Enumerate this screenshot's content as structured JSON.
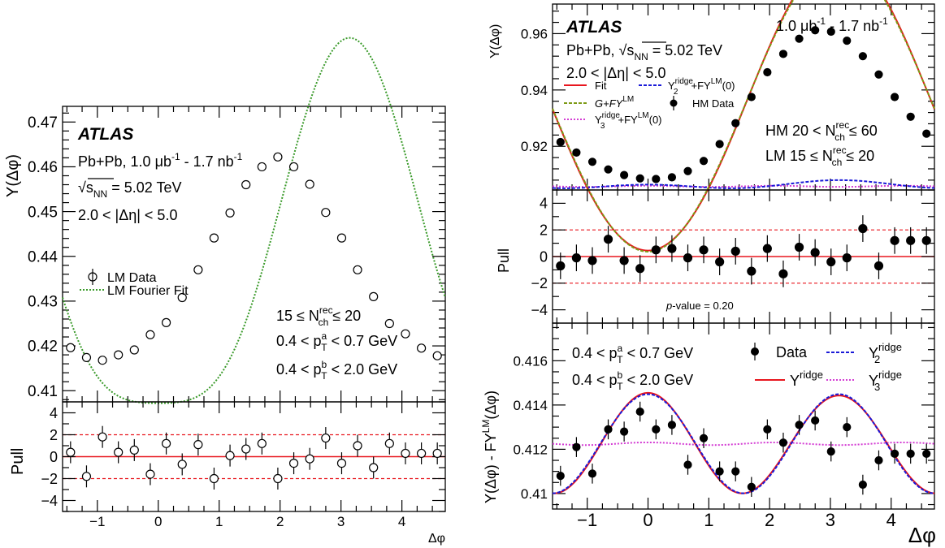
{
  "chart_data": [
    {
      "type": "scatter",
      "panel": "left-main",
      "ylabel": "Y(Δφ)",
      "ylim": [
        0.4075,
        0.4735
      ],
      "xlim": [
        -1.571,
        4.712
      ],
      "yticks": [
        "0.41",
        "0.42",
        "0.43",
        "0.44",
        "0.45",
        "0.46",
        "0.47"
      ],
      "atlas_label": "ATLAS",
      "annotations": [
        "Pb+Pb, 1.0 μb",
        "-1",
        " - 1.7 nb",
        "-1",
        "√s",
        "NN",
        " = 5.02 TeV",
        "2.0 < |Δη| < 5.0"
      ],
      "selection": [
        "15 ≤ N",
        "rec",
        "ch",
        " ≤ 20",
        "0.4 < p",
        "a",
        "T",
        " < 0.7 GeV",
        "0.4 < p",
        "b",
        "T",
        " < 2.0 GeV"
      ],
      "legend": [
        "LM Data",
        "LM Fourier Fit"
      ],
      "series": [
        {
          "name": "LM Data",
          "x": [
            -1.44,
            -1.178,
            -0.916,
            -0.655,
            -0.393,
            -0.131,
            0.131,
            0.393,
            0.655,
            0.916,
            1.178,
            1.44,
            1.702,
            1.963,
            2.225,
            2.487,
            2.749,
            3.011,
            3.272,
            3.534,
            3.796,
            4.058,
            4.32,
            4.581
          ],
          "y": [
            0.4196,
            0.4174,
            0.4168,
            0.418,
            0.4191,
            0.4225,
            0.4252,
            0.4308,
            0.437,
            0.4441,
            0.4497,
            0.456,
            0.46,
            0.4622,
            0.46,
            0.4561,
            0.4498,
            0.4441,
            0.437,
            0.431,
            0.425,
            0.4227,
            0.4195,
            0.4178
          ]
        },
        {
          "name": "LM Fourier Fit",
          "fourier": {
            "c": 0.4394,
            "v1": -0.0206,
            "v2": 0.0043,
            "v3": 0.0002
          }
        }
      ]
    },
    {
      "type": "scatter",
      "panel": "left-pull",
      "ylabel": "Pull",
      "ylim": [
        -5,
        5
      ],
      "yticks": [
        "−4",
        "−2",
        "0",
        "2",
        "4"
      ],
      "xlabel": "Δφ",
      "xticks": [
        "−1",
        "0",
        "1",
        "2",
        "3",
        "4"
      ],
      "reference_lines": [
        2,
        0,
        -2
      ],
      "series": [
        {
          "name": "LM pull",
          "x": [
            -1.44,
            -1.178,
            -0.916,
            -0.655,
            -0.393,
            -0.131,
            0.131,
            0.393,
            0.655,
            0.916,
            1.178,
            1.44,
            1.702,
            1.963,
            2.225,
            2.487,
            2.749,
            3.011,
            3.272,
            3.534,
            3.796,
            4.058,
            4.32,
            4.581
          ],
          "y": [
            0.4,
            -1.8,
            1.8,
            0.4,
            0.6,
            -1.6,
            1.2,
            -0.7,
            1.1,
            -2.0,
            0.1,
            0.7,
            1.2,
            -2.0,
            -0.6,
            -0.2,
            1.7,
            -0.6,
            1.0,
            -1.0,
            1.2,
            0.3,
            0.3,
            0.3
          ]
        }
      ]
    },
    {
      "type": "line",
      "panel": "right-top",
      "ylabel": "Y(Δφ)",
      "ylim": [
        0.9045,
        0.9705
      ],
      "yticks": [
        "0.92",
        "0.94",
        "0.96"
      ],
      "atlas_label": "ATLAS",
      "annotations": [
        "1.0 μb",
        "-1",
        " - 1.7 nb",
        "-1",
        "Pb+Pb, ",
        "√s",
        "NN",
        " = 5.02 TeV",
        "2.0 < |Δη| < 5.0"
      ],
      "selection": [
        "HM 20 < N",
        "rec",
        "ch",
        " ≤ 60",
        "LM 15 ≤ N",
        "rec",
        "ch",
        " ≤ 20"
      ],
      "legend": [
        "Fit",
        "Y",
        "ridge",
        "2",
        "+FY",
        "LM",
        "(0)",
        "G+FY",
        "LM",
        "HM Data",
        "Y",
        "ridge",
        "3",
        "+FY",
        "LM",
        "(0)"
      ],
      "series": [
        {
          "name": "HM Data",
          "x": [
            -1.44,
            -1.178,
            -0.916,
            -0.655,
            -0.393,
            -0.131,
            0.131,
            0.393,
            0.655,
            0.916,
            1.178,
            1.44,
            1.702,
            1.963,
            2.225,
            2.487,
            2.749,
            3.011,
            3.272,
            3.534,
            3.796,
            4.058,
            4.32,
            4.581
          ],
          "y": [
            0.9215,
            0.9178,
            0.9145,
            0.9118,
            0.9098,
            0.9086,
            0.9084,
            0.909,
            0.9112,
            0.9148,
            0.9208,
            0.9282,
            0.9375,
            0.9463,
            0.9528,
            0.9582,
            0.9612,
            0.9607,
            0.9575,
            0.952,
            0.9455,
            0.9375,
            0.9305,
            0.9245
          ]
        },
        {
          "name": "Fit",
          "fourier": {
            "c": 0.9342,
            "v1": -0.0262,
            "v2": 0.0005,
            "v3": 0.0001
          }
        },
        {
          "name": "G+FY^LM",
          "fourier": {
            "c": 0.934,
            "v1": -0.026,
            "v2": 0.0003,
            "v3": 0.0
          }
        },
        {
          "name": "Y2ridge+FY^LM(0)",
          "fourier": {
            "c": 0.9062,
            "v1": -0.0004,
            "v2": 0.0005,
            "v3": 0.0
          }
        },
        {
          "name": "Y3ridge+FY^LM(0)",
          "fourier": {
            "c": 0.9058,
            "v1": 0.0,
            "v2": 0.0,
            "v3": 0.0001
          }
        }
      ]
    },
    {
      "type": "scatter",
      "panel": "right-pull",
      "ylabel": "Pull",
      "ylim": [
        -5,
        5
      ],
      "yticks": [
        "−4",
        "−2",
        "0",
        "2",
        "4"
      ],
      "reference_lines": [
        2,
        0,
        -2
      ],
      "note": [
        "p",
        "-value = 0.20"
      ],
      "series": [
        {
          "name": "HM pull",
          "x": [
            -1.44,
            -1.178,
            -0.916,
            -0.655,
            -0.393,
            -0.131,
            0.131,
            0.393,
            0.655,
            0.916,
            1.178,
            1.44,
            1.702,
            1.963,
            2.225,
            2.487,
            2.749,
            3.011,
            3.272,
            3.534,
            3.796,
            4.058,
            4.32,
            4.581
          ],
          "y": [
            -0.7,
            -0.1,
            -0.3,
            1.3,
            -0.3,
            -0.9,
            0.5,
            0.6,
            -0.1,
            0.5,
            -0.4,
            0.4,
            -1.1,
            0.6,
            -1.3,
            0.7,
            0.3,
            -0.4,
            -0.1,
            2.1,
            -0.7,
            1.2,
            1.2,
            1.2
          ]
        }
      ]
    },
    {
      "type": "line",
      "panel": "right-bottom",
      "ylabel": [
        "Y(Δφ) - FY",
        "LM",
        "(Δφ)"
      ],
      "ylim": [
        0.4093,
        0.4177
      ],
      "yticks": [
        "0.41",
        "0.412",
        "0.414",
        "0.416"
      ],
      "xlabel": "Δφ",
      "xticks": [
        "−1",
        "0",
        "1",
        "2",
        "3",
        "4"
      ],
      "selection": [
        "0.4 < p",
        "a",
        "T",
        " < 0.7 GeV",
        "0.4 < p",
        "b",
        "T",
        " < 2.0 GeV"
      ],
      "legend": [
        "Data",
        "Y",
        "ridge",
        "2",
        "Y",
        "ridge",
        "Y",
        "ridge",
        "3"
      ],
      "series": [
        {
          "name": "Data",
          "x": [
            -1.44,
            -1.178,
            -0.916,
            -0.655,
            -0.393,
            -0.131,
            0.131,
            0.393,
            0.655,
            0.916,
            1.178,
            1.44,
            1.702,
            1.963,
            2.225,
            2.487,
            2.749,
            3.011,
            3.272,
            3.534,
            3.796,
            4.058,
            4.32,
            4.581
          ],
          "y": [
            0.4108,
            0.4121,
            0.4109,
            0.4129,
            0.4128,
            0.4137,
            0.4129,
            0.4131,
            0.4113,
            0.4125,
            0.411,
            0.411,
            0.4103,
            0.4129,
            0.4123,
            0.4131,
            0.4133,
            0.4119,
            0.413,
            0.4104,
            0.4115,
            0.4118,
            0.4118,
            0.4118
          ]
        },
        {
          "name": "Yridge",
          "fourier": {
            "c": 0.41225,
            "v1": 0.0,
            "v2": 0.00112,
            "v3": 3e-05
          }
        },
        {
          "name": "Y2ridge",
          "fourier": {
            "c": 0.41225,
            "v1": 0.0,
            "v2": 0.00112,
            "v3": 0.0
          }
        },
        {
          "name": "Y3ridge",
          "fourier": {
            "c": 0.41225,
            "v1": 0.0,
            "v2": 0.0,
            "v3": 3e-05
          }
        }
      ]
    }
  ],
  "colors": {
    "fit_red": "#e8161e",
    "lm_green": "#3a9a2a",
    "olive": "#7d9a16",
    "blue": "#1a1ad8",
    "magenta": "#d43dd4",
    "pull_ref": "#e8161e"
  }
}
